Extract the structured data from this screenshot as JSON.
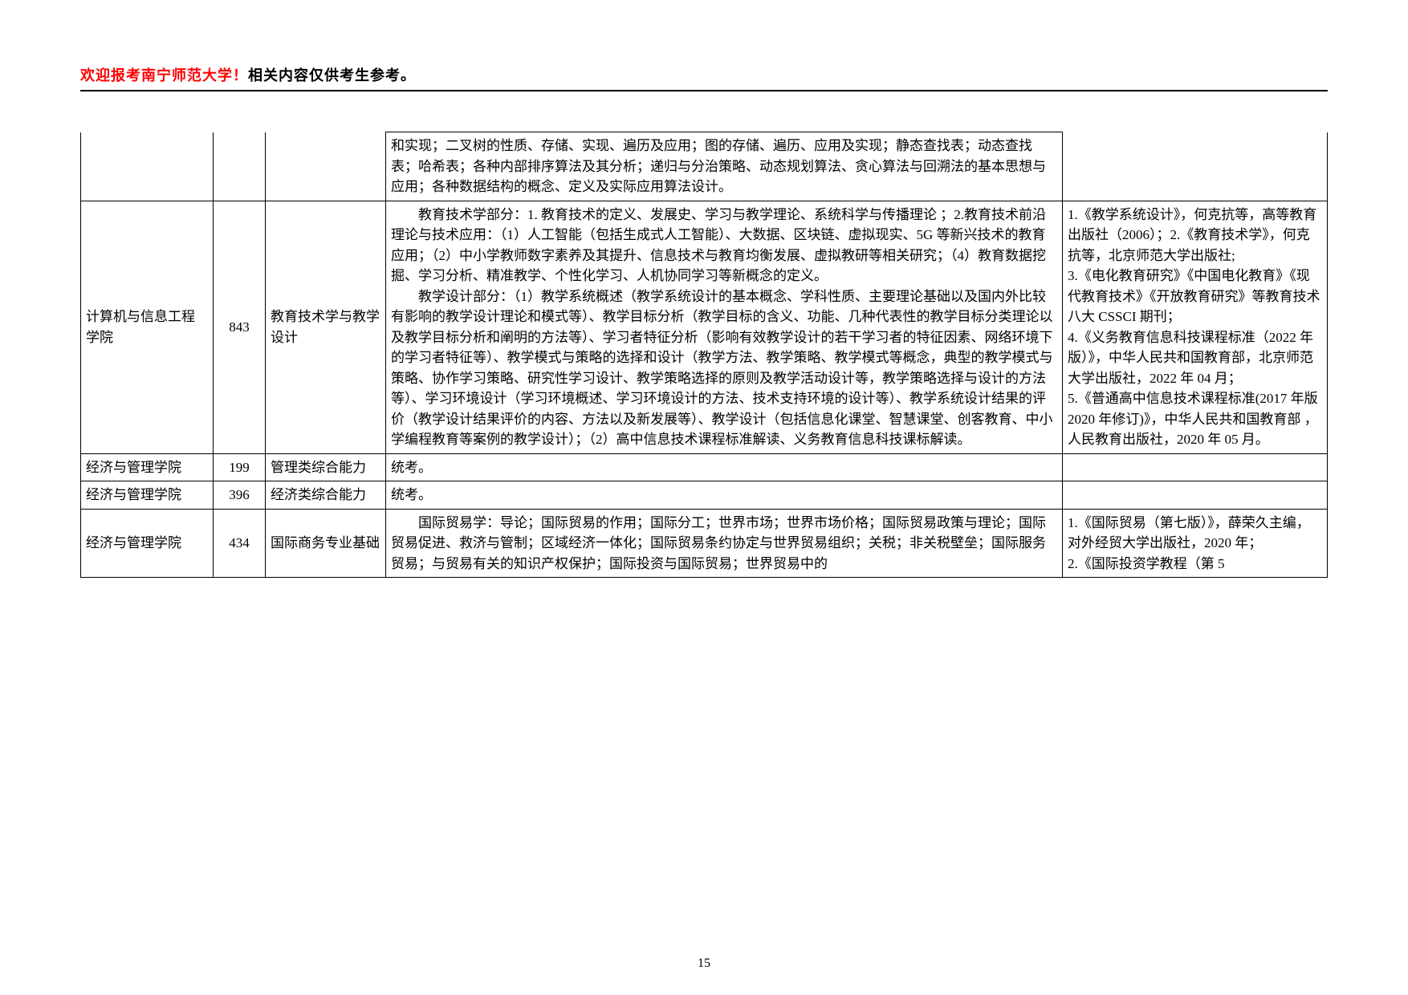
{
  "header": {
    "red_text": "欢迎报考南宁师范大学！",
    "normal_text": "相关内容仅供考生参考。"
  },
  "table": {
    "col_widths": {
      "dept": 165,
      "code": 65,
      "subject": 150,
      "ref": 330
    },
    "border_color": "#000000",
    "font_size": 17,
    "rows": [
      {
        "dept": "",
        "code": "",
        "subject": "",
        "content_lines": [
          "和实现；二叉树的性质、存储、实现、遍历及应用；图的存储、遍历、应用及实现；静态查找表；动态查找表；哈希表；各种内部排序算法及其分析；递归与分治策略、动态规划算法、贪心算法与回溯法的基本思想与应用；各种数据结构的概念、定义及实际应用算法设计。"
        ],
        "ref": "",
        "show_cells": {
          "dept": false,
          "code": false,
          "subject": false,
          "ref": false
        }
      },
      {
        "dept": "计算机与信息工程学院",
        "code": "843",
        "subject": "教育技术学与教学设计",
        "content_paragraphs": [
          "教育技术学部分：1. 教育技术的定义、发展史、学习与教学理论、系统科学与传播理论 ；2.教育技术前沿理论与技术应用：（1）人工智能（包括生成式人工智能）、大数据、区块链、虚拟现实、5G 等新兴技术的教育应用；（2）中小学教师数字素养及其提升、信息技术与教育均衡发展、虚拟教研等相关研究；（4）教育数据挖掘、学习分析、精准教学、个性化学习、人机协同学习等新概念的定义。",
          "教学设计部分：（1）教学系统概述（教学系统设计的基本概念、学科性质、主要理论基础以及国内外比较有影响的教学设计理论和模式等）、教学目标分析（教学目标的含义、功能、几种代表性的教学目标分类理论以及教学目标分析和阐明的方法等）、学习者特征分析（影响有效教学设计的若干学习者的特征因素、网络环境下的学习者特征等）、教学模式与策略的选择和设计（教学方法、教学策略、教学模式等概念，典型的教学模式与策略、协作学习策略、研究性学习设计、教学策略选择的原则及教学活动设计等，教学策略选择与设计的方法等）、学习环境设计（学习环境概述、学习环境设计的方法、技术支持环境的设计等）、教学系统设计结果的评价（教学设计结果评价的内容、方法以及新发展等）、教学设计（包括信息化课堂、智慧课堂、创客教育、中小学编程教育等案例的教学设计）；（2）高中信息技术课程标准解读、义务教育信息科技课标解读。"
        ],
        "ref": "1.《教学系统设计》，何克抗等，高等教育出版社（2006）；2.《教育技术学》，何克抗等，北京师范大学出版社;\n3.《电化教育研究》《中国电化教育》《现代教育技术》《开放教育研究》等教育技术八大 CSSCI 期刊；\n4.《义务教育信息科技课程标准（2022 年版）》，中华人民共和国教育部，北京师范大学出版社，2022 年 04 月；\n5.《普通高中信息技术课程标准(2017 年版 2020 年修订)》，中华人民共和国教育部 ，人民教育出版社，2020 年 05 月。",
        "show_cells": {
          "dept": true,
          "code": true,
          "subject": true,
          "ref": true
        }
      },
      {
        "dept": "经济与管理学院",
        "code": "199",
        "subject": "管理类综合能力",
        "content_lines": [
          "统考。"
        ],
        "ref": "",
        "show_cells": {
          "dept": true,
          "code": true,
          "subject": true,
          "ref": true
        }
      },
      {
        "dept": "经济与管理学院",
        "code": "396",
        "subject": "经济类综合能力",
        "content_lines": [
          "统考。"
        ],
        "ref": "",
        "show_cells": {
          "dept": true,
          "code": true,
          "subject": true,
          "ref": true
        }
      },
      {
        "dept": "经济与管理学院",
        "code": "434",
        "subject": "国际商务专业基础",
        "content_paragraphs": [
          "国际贸易学：导论；国际贸易的作用；国际分工；世界市场；世界市场价格；国际贸易政策与理论；国际贸易促进、救济与管制；区域经济一体化；国际贸易条约协定与世界贸易组织；关税；非关税壁垒；国际服务贸易；与贸易有关的知识产权保护；国际投资与国际贸易；世界贸易中的"
        ],
        "ref": "1.《国际贸易（第七版）》，薛荣久主编，对外经贸大学出版社，2020 年；\n2.《国际投资学教程（第 5",
        "show_cells": {
          "dept": true,
          "code": true,
          "subject": true,
          "ref": true
        }
      }
    ]
  },
  "page_number": "15"
}
